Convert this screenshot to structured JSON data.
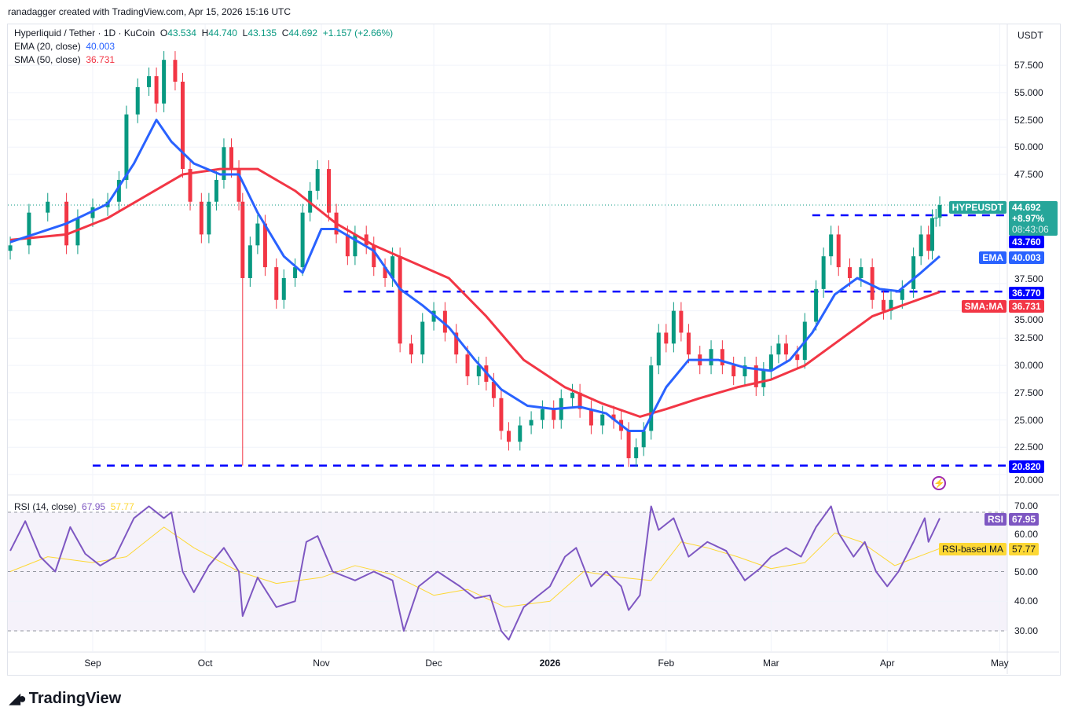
{
  "credit": "ranadagger created with TradingView.com, Apr 15, 2026 15:16 UTC",
  "legend": {
    "symbol": "Hyperliquid / Tether · 1D · KuCoin",
    "o_label": "O",
    "o": "43.534",
    "h_label": "H",
    "h": "44.740",
    "l_label": "L",
    "l": "43.135",
    "c_label": "C",
    "c": "44.692",
    "change": "+1.157 (+2.66%)",
    "ema": "EMA (20, close)",
    "ema_val": "40.003",
    "sma": "SMA (50, close)",
    "sma_val": "36.731",
    "rsi": "RSI (14, close)",
    "rsi_val": "67.95",
    "rsi_ma_val": "57.77"
  },
  "currency": "USDT",
  "tags": {
    "symbol": "HYPEUSDT",
    "price": "44.692",
    "pct": "+8.97%",
    "countdown": "08:43:06",
    "level1": "43.760",
    "ema_label": "EMA",
    "ema": "40.003",
    "level2": "36.770",
    "sma_label": "SMA:MA",
    "sma": "36.731",
    "level3": "20.820",
    "rsi_label": "RSI",
    "rsi": "67.95",
    "rsima_label": "RSI-based MA",
    "rsima": "57.77"
  },
  "brand": "TradingView",
  "colors": {
    "up": "#089981",
    "down": "#f23645",
    "ema": "#2962ff",
    "sma": "#f23645",
    "level": "#0000ff",
    "rsi": "#7e57c2",
    "rsi_ma": "#fdd835"
  },
  "chart_data": {
    "type": "candlestick",
    "price_ticks": [
      "57.500",
      "55.000",
      "52.500",
      "50.000",
      "47.500",
      "37.500",
      "35.000",
      "32.500",
      "30.000",
      "27.500",
      "25.000",
      "22.500",
      "20.000"
    ],
    "rsi_ticks": [
      "70.00",
      "60.00",
      "50.00",
      "40.00",
      "30.00"
    ],
    "x_ticks": [
      {
        "label": "Sep",
        "date": "2025-09-01"
      },
      {
        "label": "Oct",
        "date": "2025-10-01"
      },
      {
        "label": "Nov",
        "date": "2025-11-01"
      },
      {
        "label": "Dec",
        "date": "2025-12-01"
      },
      {
        "label": "2026",
        "date": "2026-01-01"
      },
      {
        "label": "Feb",
        "date": "2026-02-01"
      },
      {
        "label": "Mar",
        "date": "2026-03-01"
      },
      {
        "label": "Apr",
        "date": "2026-04-01"
      },
      {
        "label": "May",
        "date": "2026-05-01"
      }
    ],
    "levels": [
      {
        "price": 43.76,
        "from": "2026-03-12"
      },
      {
        "price": 36.77,
        "from": "2025-11-07"
      },
      {
        "price": 20.82,
        "from": "2025-09-01"
      }
    ],
    "closes": [
      [
        "2025-08-10",
        41
      ],
      [
        "2025-08-15",
        44
      ],
      [
        "2025-08-20",
        45
      ],
      [
        "2025-08-25",
        41
      ],
      [
        "2025-08-28",
        43.5
      ],
      [
        "2025-09-01",
        44.5
      ],
      [
        "2025-09-05",
        45
      ],
      [
        "2025-09-08",
        47
      ],
      [
        "2025-09-10",
        53
      ],
      [
        "2025-09-13",
        55.5
      ],
      [
        "2025-09-16",
        56.5
      ],
      [
        "2025-09-18",
        54
      ],
      [
        "2025-09-20",
        58
      ],
      [
        "2025-09-23",
        56
      ],
      [
        "2025-09-25",
        48
      ],
      [
        "2025-09-27",
        45
      ],
      [
        "2025-09-30",
        42
      ],
      [
        "2025-10-02",
        45
      ],
      [
        "2025-10-04",
        47
      ],
      [
        "2025-10-06",
        50
      ],
      [
        "2025-10-08",
        48
      ],
      [
        "2025-10-10",
        45
      ],
      [
        "2025-10-11",
        38
      ],
      [
        "2025-10-13",
        41
      ],
      [
        "2025-10-15",
        43
      ],
      [
        "2025-10-17",
        39
      ],
      [
        "2025-10-20",
        36
      ],
      [
        "2025-10-22",
        38
      ],
      [
        "2025-10-25",
        39
      ],
      [
        "2025-10-27",
        44
      ],
      [
        "2025-10-29",
        46
      ],
      [
        "2025-10-31",
        48
      ],
      [
        "2025-11-03",
        44
      ],
      [
        "2025-11-05",
        42
      ],
      [
        "2025-11-08",
        40
      ],
      [
        "2025-11-10",
        42
      ],
      [
        "2025-11-13",
        41
      ],
      [
        "2025-11-15",
        39
      ],
      [
        "2025-11-18",
        38
      ],
      [
        "2025-11-20",
        40
      ],
      [
        "2025-11-22",
        32
      ],
      [
        "2025-11-25",
        31
      ],
      [
        "2025-11-28",
        34
      ],
      [
        "2025-12-01",
        35
      ],
      [
        "2025-12-04",
        33
      ],
      [
        "2025-12-07",
        31
      ],
      [
        "2025-12-10",
        29
      ],
      [
        "2025-12-13",
        30
      ],
      [
        "2025-12-15",
        28.5
      ],
      [
        "2025-12-17",
        27
      ],
      [
        "2025-12-19",
        24
      ],
      [
        "2025-12-21",
        23
      ],
      [
        "2025-12-24",
        24.5
      ],
      [
        "2025-12-27",
        25
      ],
      [
        "2025-12-30",
        26
      ],
      [
        "2026-01-02",
        25
      ],
      [
        "2026-01-04",
        27
      ],
      [
        "2026-01-07",
        27.5
      ],
      [
        "2026-01-09",
        26
      ],
      [
        "2026-01-12",
        24.5
      ],
      [
        "2026-01-15",
        25.5
      ],
      [
        "2026-01-18",
        25
      ],
      [
        "2026-01-20",
        24
      ],
      [
        "2026-01-22",
        21.5
      ],
      [
        "2026-01-24",
        22.5
      ],
      [
        "2026-01-26",
        24
      ],
      [
        "2026-01-28",
        30
      ],
      [
        "2026-01-30",
        33
      ],
      [
        "2026-02-01",
        32
      ],
      [
        "2026-02-03",
        35
      ],
      [
        "2026-02-05",
        33
      ],
      [
        "2026-02-07",
        31
      ],
      [
        "2026-02-10",
        30
      ],
      [
        "2026-02-13",
        31.5
      ],
      [
        "2026-02-16",
        30
      ],
      [
        "2026-02-19",
        29
      ],
      [
        "2026-02-22",
        30
      ],
      [
        "2026-02-25",
        28
      ],
      [
        "2026-02-27",
        29.5
      ],
      [
        "2026-03-01",
        31
      ],
      [
        "2026-03-03",
        32
      ],
      [
        "2026-03-05",
        31
      ],
      [
        "2026-03-08",
        30.5
      ],
      [
        "2026-03-10",
        34
      ],
      [
        "2026-03-13",
        37
      ],
      [
        "2026-03-15",
        40
      ],
      [
        "2026-03-17",
        42
      ],
      [
        "2026-03-19",
        39
      ],
      [
        "2026-03-22",
        38
      ],
      [
        "2026-03-25",
        39
      ],
      [
        "2026-03-28",
        36
      ],
      [
        "2026-03-31",
        35
      ],
      [
        "2026-04-02",
        36
      ],
      [
        "2026-04-05",
        37
      ],
      [
        "2026-04-08",
        40
      ],
      [
        "2026-04-10",
        42
      ],
      [
        "2026-04-12",
        40.5
      ],
      [
        "2026-04-13",
        43.5
      ],
      [
        "2026-04-14",
        43.534
      ],
      [
        "2026-04-15",
        44.692
      ]
    ],
    "ema20": [
      [
        "2025-08-10",
        41.3
      ],
      [
        "2025-08-25",
        43
      ],
      [
        "2025-09-05",
        44.8
      ],
      [
        "2025-09-12",
        48.5
      ],
      [
        "2025-09-18",
        52.5
      ],
      [
        "2025-09-22",
        50.5
      ],
      [
        "2025-09-28",
        48.5
      ],
      [
        "2025-10-05",
        47.5
      ],
      [
        "2025-10-10",
        47.5
      ],
      [
        "2025-10-15",
        44
      ],
      [
        "2025-10-22",
        40
      ],
      [
        "2025-10-27",
        38.5
      ],
      [
        "2025-11-01",
        42.5
      ],
      [
        "2025-11-05",
        42.5
      ],
      [
        "2025-11-15",
        40.5
      ],
      [
        "2025-11-22",
        37
      ],
      [
        "2025-11-28",
        35.5
      ],
      [
        "2025-12-05",
        33.5
      ],
      [
        "2025-12-12",
        30.5
      ],
      [
        "2025-12-19",
        27.8
      ],
      [
        "2025-12-26",
        26.3
      ],
      [
        "2026-01-02",
        26
      ],
      [
        "2026-01-09",
        26.2
      ],
      [
        "2026-01-16",
        25.6
      ],
      [
        "2026-01-22",
        24
      ],
      [
        "2026-01-26",
        24
      ],
      [
        "2026-02-01",
        28
      ],
      [
        "2026-02-07",
        30.5
      ],
      [
        "2026-02-15",
        30.5
      ],
      [
        "2026-02-22",
        29.8
      ],
      [
        "2026-03-01",
        29.5
      ],
      [
        "2026-03-06",
        30.5
      ],
      [
        "2026-03-12",
        33
      ],
      [
        "2026-03-18",
        36.5
      ],
      [
        "2026-03-24",
        38
      ],
      [
        "2026-03-30",
        37
      ],
      [
        "2026-04-04",
        36.8
      ],
      [
        "2026-04-10",
        38.5
      ],
      [
        "2026-04-15",
        40.003
      ]
    ],
    "sma50": [
      [
        "2025-08-10",
        41.5
      ],
      [
        "2025-08-25",
        42
      ],
      [
        "2025-09-05",
        43.5
      ],
      [
        "2025-09-15",
        45.5
      ],
      [
        "2025-09-25",
        47.5
      ],
      [
        "2025-10-05",
        48
      ],
      [
        "2025-10-15",
        48
      ],
      [
        "2025-10-25",
        46
      ],
      [
        "2025-11-05",
        43
      ],
      [
        "2025-11-15",
        41
      ],
      [
        "2025-11-25",
        39.5
      ],
      [
        "2025-12-05",
        38
      ],
      [
        "2025-12-15",
        34.5
      ],
      [
        "2025-12-25",
        30.5
      ],
      [
        "2026-01-05",
        28
      ],
      [
        "2026-01-15",
        26.5
      ],
      [
        "2026-01-25",
        25.3
      ],
      [
        "2026-02-01",
        26
      ],
      [
        "2026-02-10",
        27
      ],
      [
        "2026-02-20",
        28
      ],
      [
        "2026-03-01",
        28.7
      ],
      [
        "2026-03-10",
        30
      ],
      [
        "2026-03-18",
        32
      ],
      [
        "2026-03-28",
        34.5
      ],
      [
        "2026-04-05",
        35.5
      ],
      [
        "2026-04-15",
        36.731
      ]
    ],
    "rsi": [
      [
        "2025-08-10",
        57
      ],
      [
        "2025-08-14",
        67
      ],
      [
        "2025-08-18",
        55
      ],
      [
        "2025-08-22",
        50
      ],
      [
        "2025-08-26",
        65
      ],
      [
        "2025-08-30",
        56
      ],
      [
        "2025-09-03",
        52
      ],
      [
        "2025-09-07",
        55
      ],
      [
        "2025-09-12",
        68
      ],
      [
        "2025-09-16",
        72
      ],
      [
        "2025-09-20",
        68
      ],
      [
        "2025-09-22",
        70
      ],
      [
        "2025-09-25",
        50
      ],
      [
        "2025-09-28",
        43
      ],
      [
        "2025-10-02",
        52
      ],
      [
        "2025-10-06",
        58
      ],
      [
        "2025-10-10",
        50
      ],
      [
        "2025-10-11",
        35
      ],
      [
        "2025-10-15",
        48
      ],
      [
        "2025-10-20",
        38
      ],
      [
        "2025-10-25",
        40
      ],
      [
        "2025-10-28",
        60
      ],
      [
        "2025-10-31",
        62
      ],
      [
        "2025-11-04",
        50
      ],
      [
        "2025-11-10",
        47
      ],
      [
        "2025-11-15",
        50
      ],
      [
        "2025-11-20",
        47
      ],
      [
        "2025-11-23",
        30
      ],
      [
        "2025-11-27",
        45
      ],
      [
        "2025-12-02",
        50
      ],
      [
        "2025-12-08",
        45
      ],
      [
        "2025-12-12",
        41
      ],
      [
        "2025-12-16",
        42
      ],
      [
        "2025-12-19",
        30
      ],
      [
        "2025-12-21",
        27
      ],
      [
        "2025-12-25",
        38
      ],
      [
        "2026-01-01",
        45
      ],
      [
        "2026-01-05",
        55
      ],
      [
        "2026-01-08",
        58
      ],
      [
        "2026-01-12",
        45
      ],
      [
        "2026-01-16",
        50
      ],
      [
        "2026-01-20",
        45
      ],
      [
        "2026-01-22",
        37
      ],
      [
        "2026-01-25",
        42
      ],
      [
        "2026-01-28",
        72
      ],
      [
        "2026-01-30",
        64
      ],
      [
        "2026-02-03",
        68
      ],
      [
        "2026-02-07",
        55
      ],
      [
        "2026-02-12",
        60
      ],
      [
        "2026-02-17",
        57
      ],
      [
        "2026-02-22",
        47
      ],
      [
        "2026-02-26",
        51
      ],
      [
        "2026-03-01",
        55
      ],
      [
        "2026-03-05",
        58
      ],
      [
        "2026-03-09",
        55
      ],
      [
        "2026-03-13",
        65
      ],
      [
        "2026-03-17",
        72
      ],
      [
        "2026-03-19",
        63
      ],
      [
        "2026-03-23",
        55
      ],
      [
        "2026-03-26",
        60
      ],
      [
        "2026-03-29",
        50
      ],
      [
        "2026-04-01",
        45
      ],
      [
        "2026-04-04",
        50
      ],
      [
        "2026-04-08",
        60
      ],
      [
        "2026-04-11",
        68
      ],
      [
        "2026-04-12",
        60
      ],
      [
        "2026-04-15",
        67.95
      ]
    ],
    "rsi_ma": [
      [
        "2025-08-10",
        50
      ],
      [
        "2025-08-20",
        55
      ],
      [
        "2025-09-01",
        53
      ],
      [
        "2025-09-10",
        55
      ],
      [
        "2025-09-20",
        65
      ],
      [
        "2025-09-28",
        58
      ],
      [
        "2025-10-10",
        50
      ],
      [
        "2025-10-20",
        46
      ],
      [
        "2025-11-01",
        48
      ],
      [
        "2025-11-10",
        52
      ],
      [
        "2025-11-20",
        49
      ],
      [
        "2025-12-01",
        42
      ],
      [
        "2025-12-10",
        44
      ],
      [
        "2025-12-20",
        38
      ],
      [
        "2026-01-01",
        40
      ],
      [
        "2026-01-10",
        50
      ],
      [
        "2026-01-20",
        48
      ],
      [
        "2026-01-28",
        47
      ],
      [
        "2026-02-05",
        60
      ],
      [
        "2026-02-12",
        58
      ],
      [
        "2026-02-20",
        55
      ],
      [
        "2026-03-01",
        51
      ],
      [
        "2026-03-10",
        53
      ],
      [
        "2026-03-18",
        63
      ],
      [
        "2026-03-25",
        60
      ],
      [
        "2026-04-03",
        52
      ],
      [
        "2026-04-15",
        57.77
      ]
    ]
  }
}
